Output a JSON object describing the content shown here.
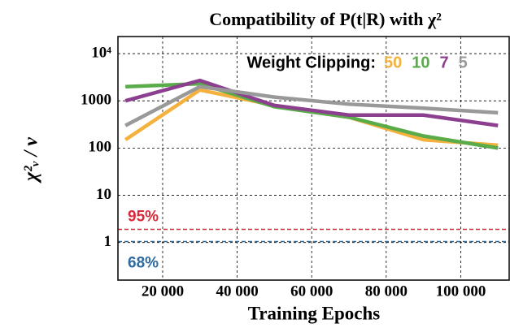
{
  "chart_data": {
    "type": "line",
    "title": "Compatibility of P(t|R) with χ²",
    "xlabel": "Training Epochs",
    "ylabel": "χ²ᵥ / ν",
    "legend_title": "Weight Clipping:",
    "x": [
      10000,
      30000,
      50000,
      70000,
      90000,
      110000
    ],
    "series": [
      {
        "name": "50",
        "color": "#f5b13d",
        "values": [
          150,
          1700,
          800,
          450,
          150,
          115
        ]
      },
      {
        "name": "10",
        "color": "#5aab4a",
        "values": [
          2000,
          2300,
          750,
          450,
          180,
          100
        ]
      },
      {
        "name": "7",
        "color": "#8c3f8f",
        "values": [
          1000,
          2700,
          800,
          500,
          500,
          300
        ]
      },
      {
        "name": "5",
        "color": "#999999",
        "values": [
          300,
          2000,
          1200,
          850,
          700,
          560
        ]
      }
    ],
    "reference_lines": [
      {
        "label": "95%",
        "value": 1.9,
        "color": "#d62a3a"
      },
      {
        "label": "68%",
        "value": 1.05,
        "color": "#2f6a9e"
      }
    ],
    "xlim": [
      8000,
      113000
    ],
    "ylim": [
      0.16,
      23000
    ],
    "ylog": true,
    "grid": true,
    "xticks": [
      {
        "value": 20000,
        "label": "20 000"
      },
      {
        "value": 40000,
        "label": "40 000"
      },
      {
        "value": 60000,
        "label": "60 000"
      },
      {
        "value": 80000,
        "label": "80 000"
      },
      {
        "value": 100000,
        "label": "100 000"
      }
    ],
    "yticks": [
      1,
      10,
      100,
      1000,
      {
        "value": 10000,
        "label": "10⁴"
      }
    ]
  }
}
